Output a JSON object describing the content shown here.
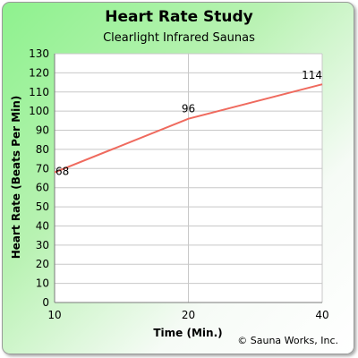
{
  "chart_data": {
    "type": "line",
    "title": "Heart Rate Study",
    "subtitle": "Clearlight Infrared Saunas",
    "xlabel": "Time (Min.)",
    "ylabel": "Heart Rate (Beats Per Min)",
    "categories": [
      "10",
      "20",
      "40"
    ],
    "series": [
      {
        "values": [
          68,
          96,
          114
        ],
        "color": "#ef6a5e"
      }
    ],
    "data_labels": [
      "68",
      "96",
      "114"
    ],
    "ylim": [
      0,
      130
    ],
    "yticks": [
      0,
      10,
      20,
      30,
      40,
      50,
      60,
      70,
      80,
      90,
      100,
      110,
      120,
      130
    ],
    "grid": true,
    "legend": "none"
  },
  "copyright": "© Sauna Works, Inc."
}
